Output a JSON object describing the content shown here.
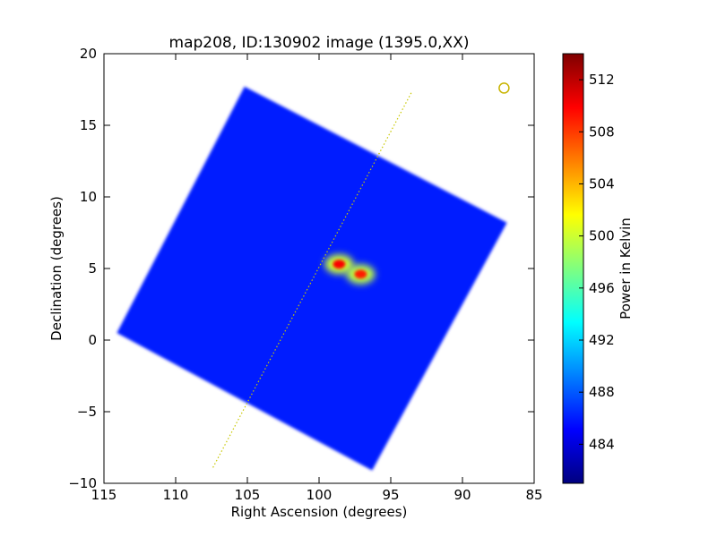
{
  "chart_data": {
    "type": "heatmap",
    "title": "map208, ID:130902 image (1395.0,XX)",
    "xlabel": "Right Ascension (degrees)",
    "ylabel": "Declination (degrees)",
    "xlim": [
      115,
      85
    ],
    "ylim": [
      -10,
      20
    ],
    "x_ticks": [
      {
        "value": 115,
        "label": "115"
      },
      {
        "value": 110,
        "label": "110"
      },
      {
        "value": 105,
        "label": "105"
      },
      {
        "value": 100,
        "label": "100"
      },
      {
        "value": 95,
        "label": "95"
      },
      {
        "value": 90,
        "label": "90"
      },
      {
        "value": 85,
        "label": "85"
      }
    ],
    "y_ticks": [
      {
        "value": 20,
        "label": "20"
      },
      {
        "value": 15,
        "label": "15"
      },
      {
        "value": 10,
        "label": "10"
      },
      {
        "value": 5,
        "label": "5"
      },
      {
        "value": 0,
        "label": "0"
      },
      {
        "value": -5,
        "label": "−5"
      },
      {
        "value": -10,
        "label": "−10"
      }
    ],
    "grid": false,
    "colorbar": {
      "label": "Power in Kelvin",
      "colormap": "jet",
      "range": [
        481,
        514
      ],
      "ticks": [
        {
          "value": 484,
          "label": "484"
        },
        {
          "value": 488,
          "label": "488"
        },
        {
          "value": 492,
          "label": "492"
        },
        {
          "value": 496,
          "label": "496"
        },
        {
          "value": 500,
          "label": "500"
        },
        {
          "value": 504,
          "label": "504"
        },
        {
          "value": 508,
          "label": "508"
        },
        {
          "value": 512,
          "label": "512"
        }
      ]
    },
    "map_footprint": {
      "corners_ra_dec": [
        [
          105.2,
          17.7
        ],
        [
          86.9,
          8.2
        ],
        [
          96.3,
          -9.1
        ],
        [
          114.1,
          0.5
        ]
      ],
      "background_level": 486
    },
    "hotspots": [
      {
        "ra": 98.6,
        "dec": 5.3,
        "peak": 510
      },
      {
        "ra": 97.1,
        "dec": 4.6,
        "peak": 509
      }
    ],
    "dotted_line": {
      "start": [
        107.4,
        -8.9
      ],
      "end": [
        93.5,
        17.4
      ],
      "color": "#c8c800"
    },
    "marker": {
      "ra": 87.1,
      "dec": 17.6,
      "shape": "circle",
      "color": "#c8b400"
    }
  }
}
